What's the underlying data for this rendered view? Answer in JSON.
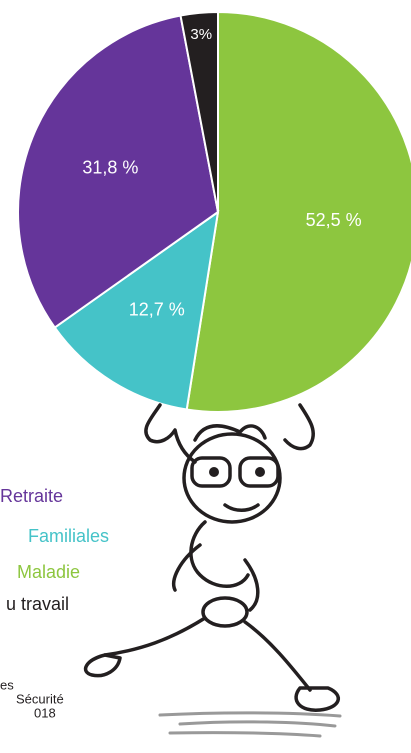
{
  "chart_data": {
    "type": "pie",
    "categories": [
      "Maladie",
      "Familiales",
      "Retraite",
      "u travail"
    ],
    "values": [
      52.5,
      12.7,
      31.8,
      3
    ],
    "value_labels": [
      "52,5 %",
      "12,7 %",
      "31,8 %",
      "3%"
    ],
    "colors": [
      "#8dc63f",
      "#45c3c8",
      "#65359a",
      "#231f20"
    ],
    "source": [
      "es",
      "Sécurité",
      "018"
    ]
  }
}
